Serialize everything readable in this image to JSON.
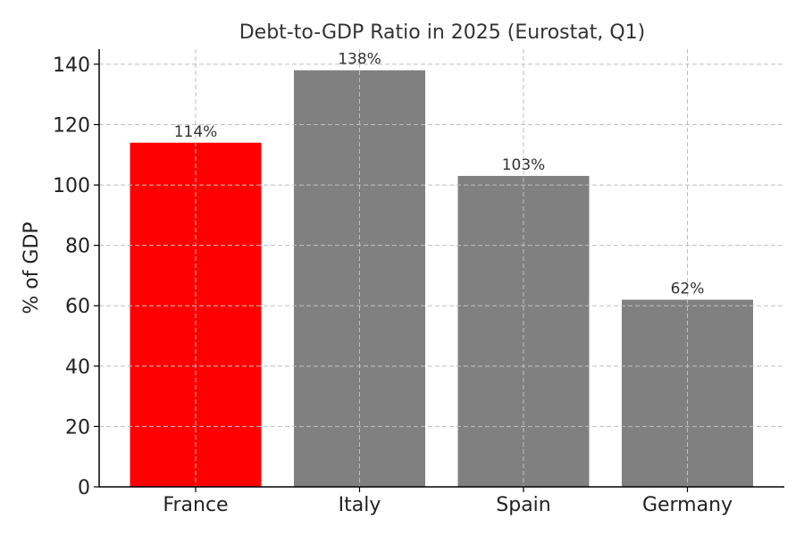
{
  "chart_data": {
    "type": "bar",
    "title": "Debt-to-GDP Ratio in 2025 (Eurostat, Q1)",
    "xlabel": "",
    "ylabel": "% of GDP",
    "categories": [
      "France",
      "Italy",
      "Spain",
      "Germany"
    ],
    "values": [
      114,
      138,
      103,
      62
    ],
    "value_labels": [
      "114%",
      "138%",
      "103%",
      "62%"
    ],
    "colors": [
      "#ff0000",
      "#808080",
      "#808080",
      "#808080"
    ],
    "ylim": [
      0,
      145
    ],
    "yticks": [
      0,
      20,
      40,
      60,
      80,
      100,
      120,
      140
    ],
    "ytick_labels": [
      "0",
      "20",
      "40",
      "60",
      "80",
      "100",
      "120",
      "140"
    ],
    "grid": true,
    "legend": "none"
  }
}
